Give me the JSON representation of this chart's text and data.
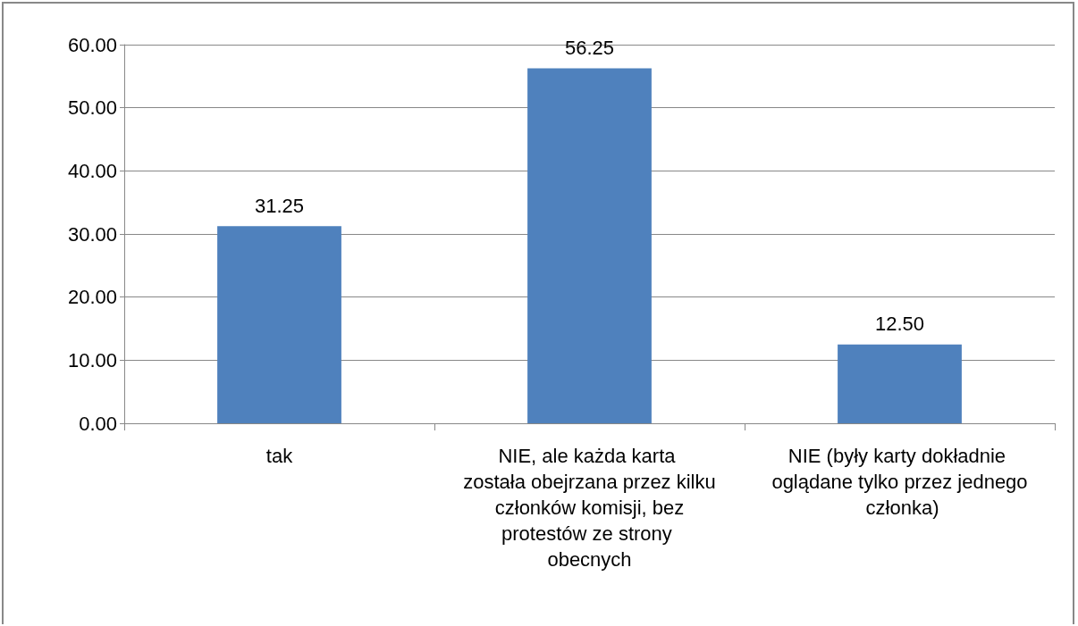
{
  "chart_data": {
    "type": "bar",
    "categories": [
      "tak",
      "NIE, ale każda karta została obejrzana przez kilku członków komisji, bez protestów ze strony obecnych",
      "NIE (były karty dokładnie oglądane tylko przez jednego członka)"
    ],
    "values": [
      31.25,
      56.25,
      12.5
    ],
    "value_labels": [
      "31.25",
      "56.25",
      "12.50"
    ],
    "color": "#4f81bd",
    "ylim": [
      0,
      60
    ],
    "yticks": [
      {
        "value": 0,
        "label": "0.00"
      },
      {
        "value": 10,
        "label": "10.00"
      },
      {
        "value": 20,
        "label": "20.00"
      },
      {
        "value": 30,
        "label": "30.00"
      },
      {
        "value": 40,
        "label": "40.00"
      },
      {
        "value": 50,
        "label": "50.00"
      },
      {
        "value": 60,
        "label": "60.00"
      }
    ],
    "grid": "y"
  }
}
